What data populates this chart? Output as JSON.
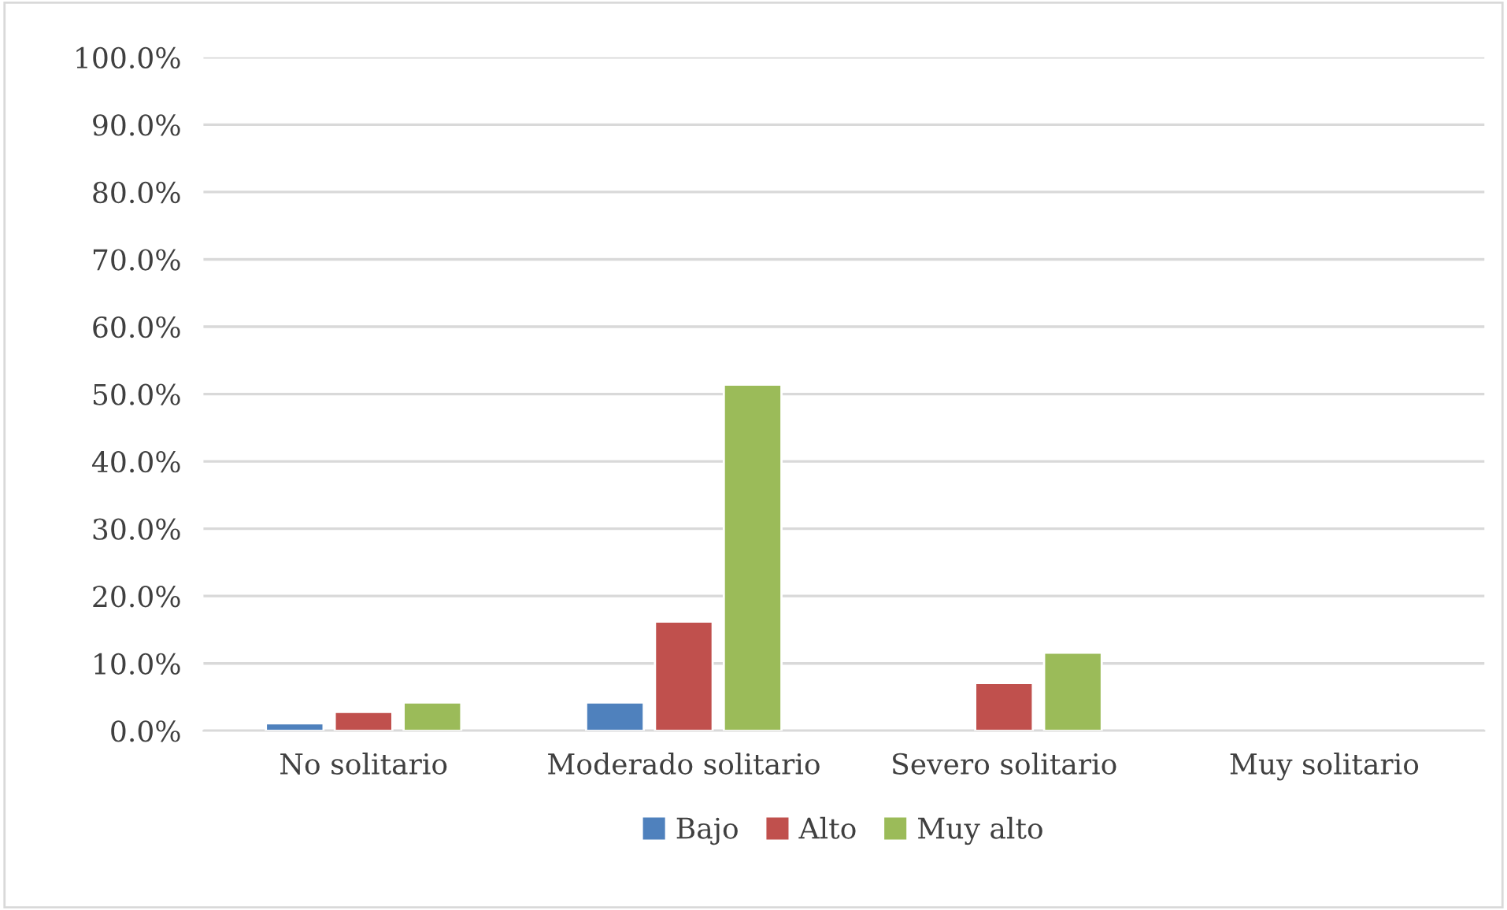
{
  "chart_data": {
    "type": "bar",
    "categories": [
      "No solitario",
      "Moderado solitario",
      "Severo solitario",
      "Muy solitario"
    ],
    "series": [
      {
        "name": "Bajo",
        "color": "#4f81bd",
        "values": [
          1.1,
          4.2,
          null,
          null
        ]
      },
      {
        "name": "Alto",
        "color": "#c0504d",
        "values": [
          2.8,
          16.2,
          7.1,
          null
        ]
      },
      {
        "name": "Muy alto",
        "color": "#9bbb59",
        "values": [
          4.2,
          51.4,
          11.6,
          null
        ]
      }
    ],
    "ylim": [
      0,
      100
    ],
    "yticks": [
      {
        "value": 0,
        "label": "0.0%"
      },
      {
        "value": 10,
        "label": "10.0%"
      },
      {
        "value": 20,
        "label": "20.0%"
      },
      {
        "value": 30,
        "label": "30.0%"
      },
      {
        "value": 40,
        "label": "40.0%"
      },
      {
        "value": 50,
        "label": "50.0%"
      },
      {
        "value": 60,
        "label": "60.0%"
      },
      {
        "value": 70,
        "label": "70.0%"
      },
      {
        "value": 80,
        "label": "80.0%"
      },
      {
        "value": 90,
        "label": "90.0%"
      },
      {
        "value": 100,
        "label": "100.0%"
      }
    ],
    "grid": "y",
    "legend": "bottom"
  }
}
